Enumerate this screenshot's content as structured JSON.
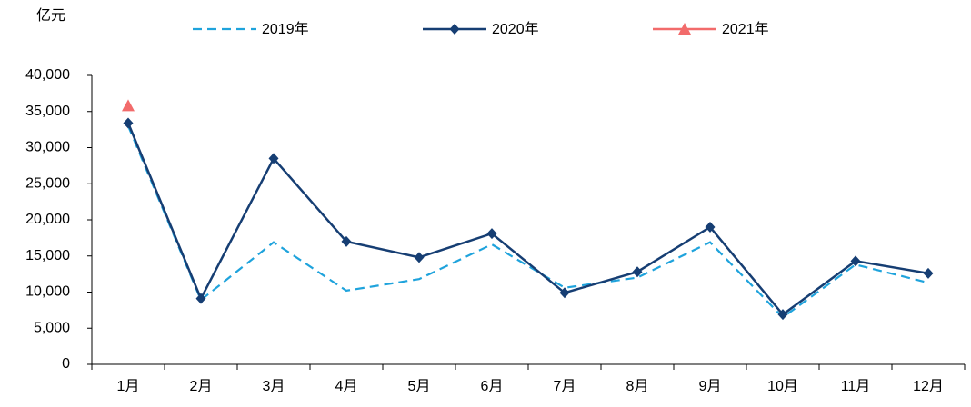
{
  "chart_data": {
    "type": "line",
    "y_label": "亿元",
    "categories": [
      "1月",
      "2月",
      "3月",
      "4月",
      "5月",
      "6月",
      "7月",
      "8月",
      "9月",
      "10月",
      "11月",
      "12月"
    ],
    "series": [
      {
        "name": "2019年",
        "color": "#1fa3dc",
        "style": "dashed",
        "marker": "none",
        "values": [
          33000,
          8900,
          16900,
          10200,
          11800,
          16600,
          10600,
          12000,
          16900,
          6500,
          13800,
          11300
        ]
      },
      {
        "name": "2020年",
        "color": "#163e73",
        "style": "solid",
        "marker": "diamond",
        "values": [
          33400,
          9100,
          28500,
          17000,
          14800,
          18100,
          9900,
          12800,
          19000,
          6900,
          14300,
          12600
        ]
      },
      {
        "name": "2021年",
        "color": "#f26b6b",
        "style": "solid",
        "marker": "triangle",
        "values": [
          35800,
          null,
          null,
          null,
          null,
          null,
          null,
          null,
          null,
          null,
          null,
          null
        ]
      }
    ],
    "ylim": [
      0,
      40000
    ],
    "yticks": [
      0,
      {
        "value": 5000,
        "label": "5,000"
      },
      {
        "value": 10000,
        "label": "10,000"
      },
      {
        "value": 15000,
        "label": "15,000"
      },
      {
        "value": 20000,
        "label": "20,000"
      },
      {
        "value": 25000,
        "label": "25,000"
      },
      {
        "value": 30000,
        "label": "30,000"
      },
      {
        "value": 35000,
        "label": "35,000"
      },
      {
        "value": 40000,
        "label": "40,000"
      }
    ],
    "grid": false,
    "legend": "top"
  }
}
